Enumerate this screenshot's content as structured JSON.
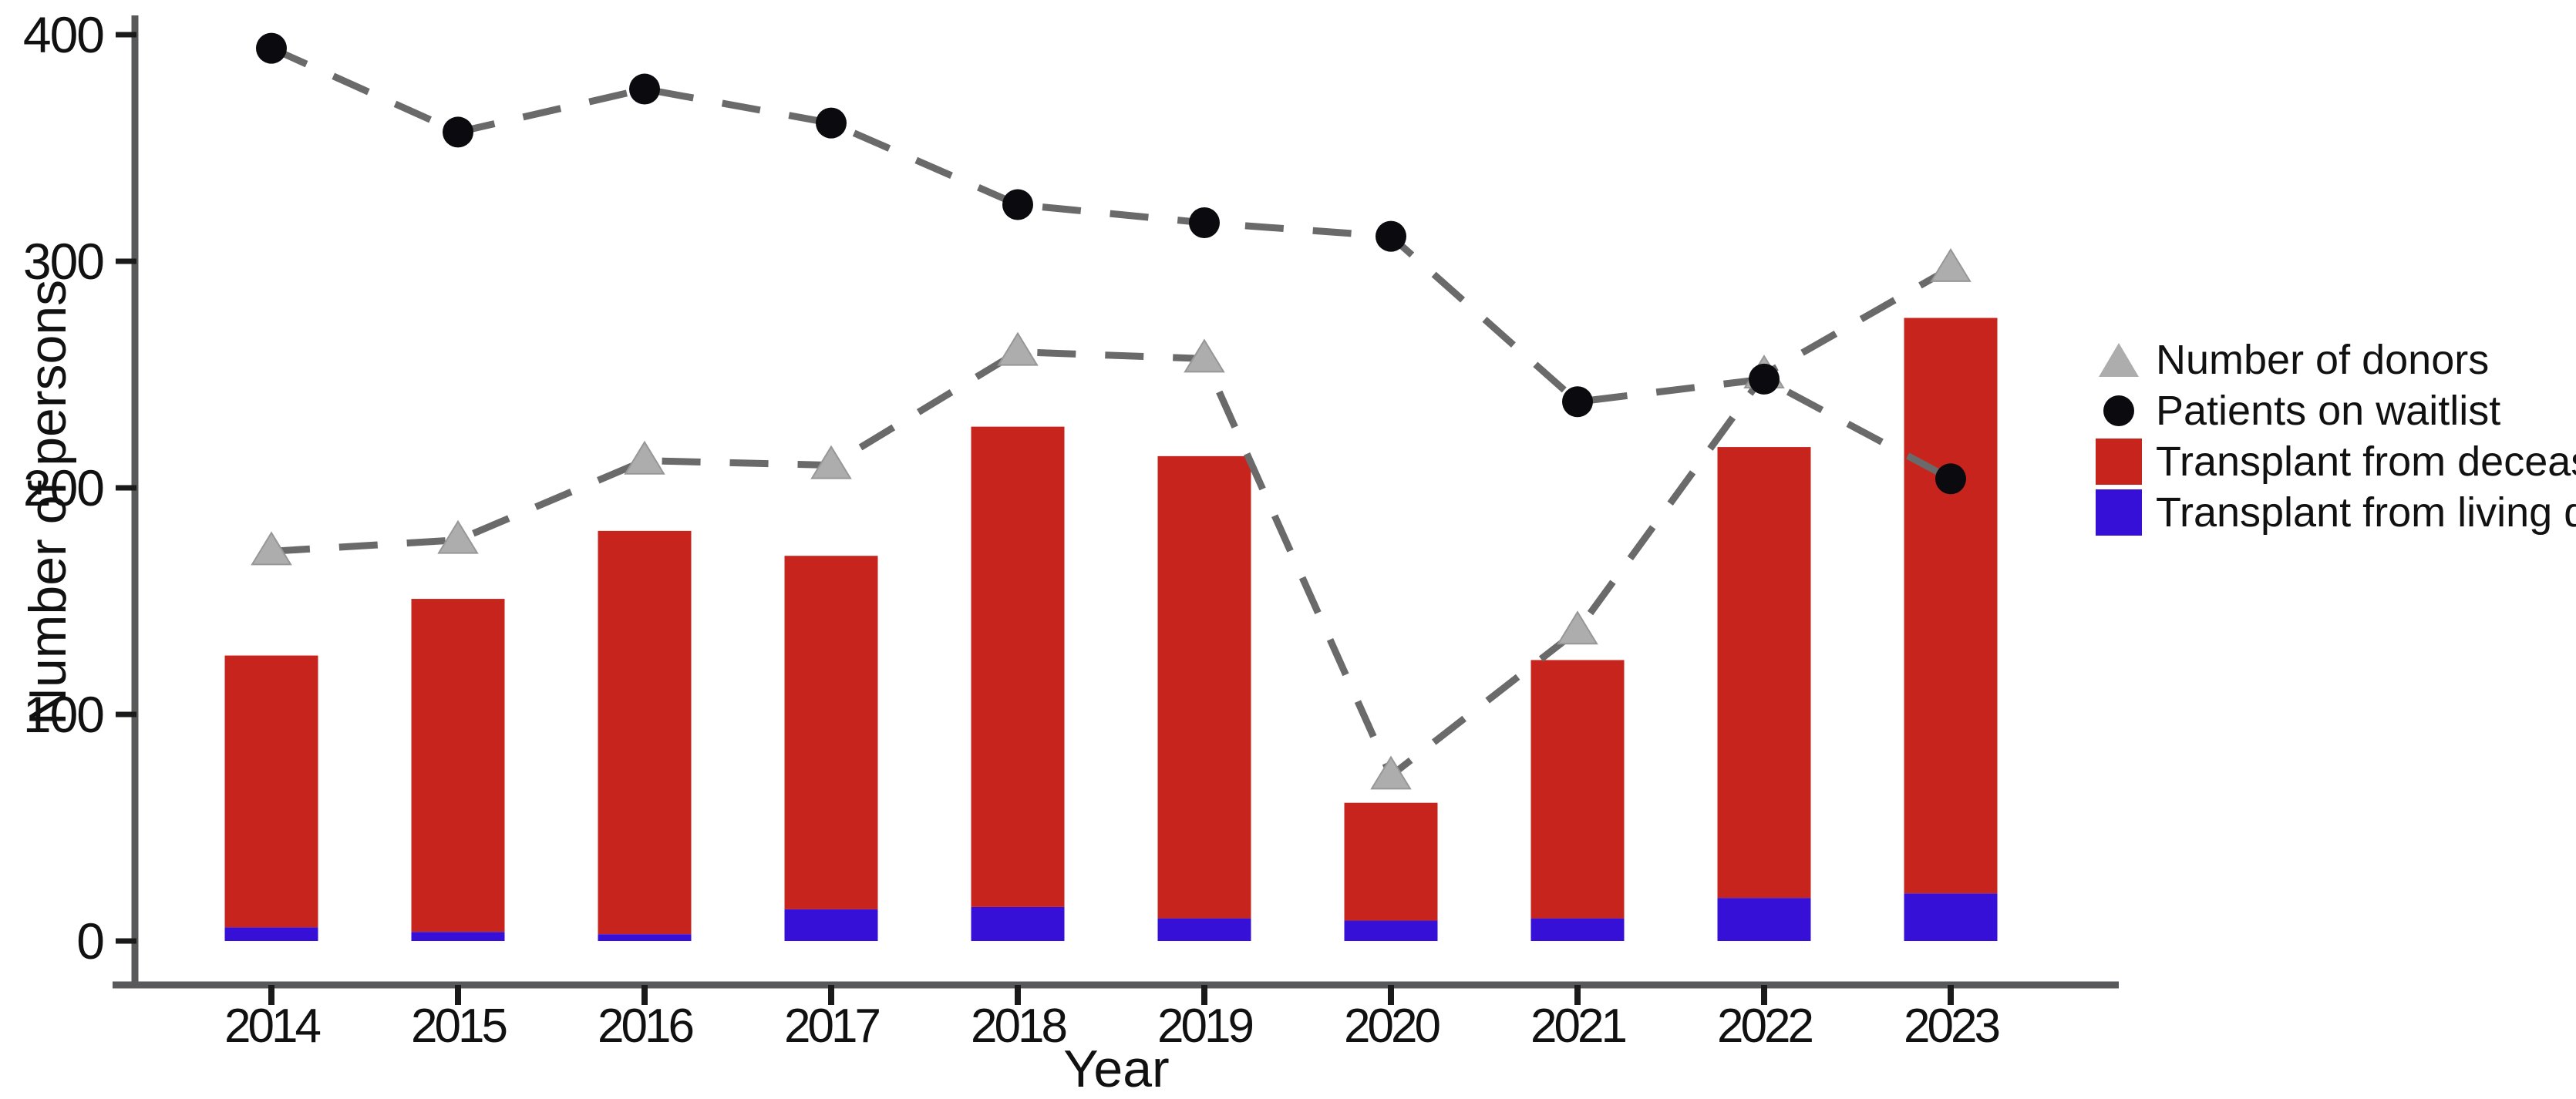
{
  "figure": {
    "y_axis_title": "Number of persons",
    "x_axis_title": "Year"
  },
  "chart_data": {
    "type": "combo-stacked-bar-line",
    "title": "",
    "xlabel": "Year",
    "ylabel": "Number of persons",
    "categories": [
      "2014",
      "2015",
      "2016",
      "2017",
      "2018",
      "2019",
      "2020",
      "2021",
      "2022",
      "2023"
    ],
    "yticks": [
      0,
      100,
      200,
      300,
      400
    ],
    "ylim": [
      0,
      400
    ],
    "grid": false,
    "legend_position": "right",
    "series": [
      {
        "name": "Transplant from living donors",
        "type": "bar",
        "stack_order": 0,
        "color": "#3710d7",
        "values": [
          6,
          4,
          3,
          14,
          15,
          10,
          9,
          10,
          19,
          21
        ]
      },
      {
        "name": "Transplant from deceased donors",
        "type": "bar",
        "stack_order": 1,
        "color": "#c8241e",
        "values": [
          120,
          147,
          178,
          156,
          212,
          204,
          52,
          114,
          199,
          254
        ]
      },
      {
        "name": "Number of donors",
        "type": "line",
        "marker": "triangle",
        "marker_color": "#adadad",
        "line_color": "#6a6a6a",
        "line_style": "dashed",
        "values": [
          172,
          177,
          212,
          210,
          260,
          257,
          73,
          137,
          250,
          297
        ]
      },
      {
        "name": "Patients on waitlist",
        "type": "line",
        "marker": "circle",
        "marker_color": "#0b0b0f",
        "line_color": "#6a6a6a",
        "line_style": "dashed",
        "values": [
          394,
          357,
          376,
          361,
          325,
          317,
          311,
          238,
          248,
          204
        ]
      }
    ],
    "stacked_bar_totals": [
      126,
      151,
      181,
      170,
      227,
      214,
      61,
      124,
      218,
      275
    ]
  },
  "legend": {
    "items": [
      {
        "label": "Number of donors",
        "shape": "triangle",
        "color": "#adadad"
      },
      {
        "label": "Patients on waitlist",
        "shape": "circle",
        "color": "#0b0b0f"
      },
      {
        "label": "Transplant from deceased donors",
        "shape": "square",
        "color": "#c8241e"
      },
      {
        "label": "Transplant from living donors",
        "shape": "square",
        "color": "#3710d7"
      }
    ]
  },
  "style": {
    "axis_color": "#58595b",
    "tick_color": "#1a1a1a",
    "dash_color": "#6a6a6a",
    "triangle_edge": "#979797"
  }
}
